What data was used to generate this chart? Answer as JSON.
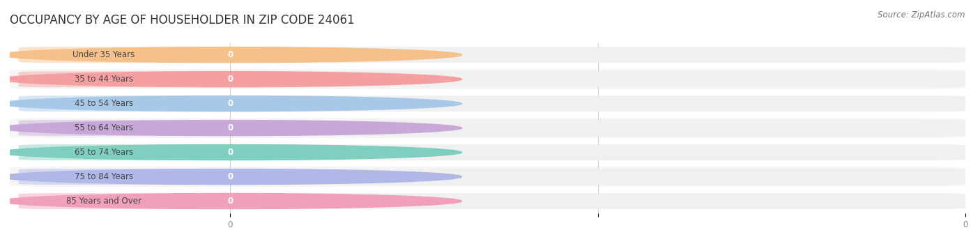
{
  "title": "OCCUPANCY BY AGE OF HOUSEHOLDER IN ZIP CODE 24061",
  "source": "Source: ZipAtlas.com",
  "categories": [
    "Under 35 Years",
    "35 to 44 Years",
    "45 to 54 Years",
    "55 to 64 Years",
    "65 to 74 Years",
    "75 to 84 Years",
    "85 Years and Over"
  ],
  "values": [
    0,
    0,
    0,
    0,
    0,
    0,
    0
  ],
  "bar_colors": [
    "#F5C08A",
    "#F5A0A0",
    "#A8C8E8",
    "#C8A8D8",
    "#7ECFC0",
    "#B0B8E8",
    "#F0A0B8"
  ],
  "row_bg_odd": "#FFFFFF",
  "row_bg_even": "#F5F5F5",
  "bar_bg_color": "#EFEFEF",
  "xlim_left": -0.3,
  "xlim_right": 1.0,
  "title_fontsize": 12,
  "label_fontsize": 8.5,
  "tick_fontsize": 8.5,
  "source_fontsize": 8.5,
  "background_color": "#FFFFFF"
}
